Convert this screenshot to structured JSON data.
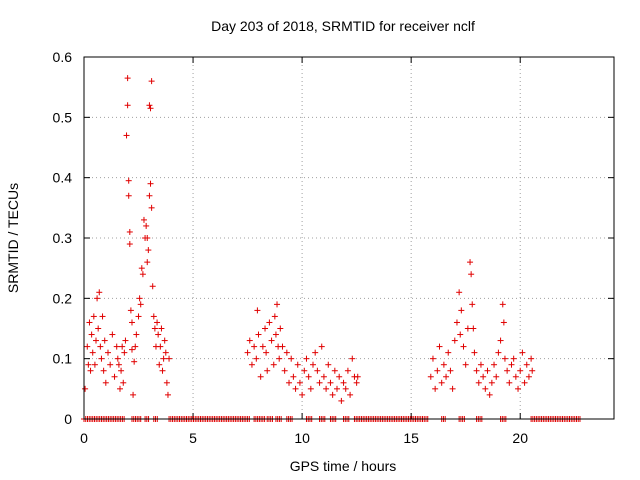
{
  "chart_data": {
    "type": "scatter",
    "title": "Day 203 of 2018, SRMTID for receiver nclf",
    "xlabel": "GPS time / hours",
    "ylabel": "SRMTID / TECUs",
    "xlim": [
      0,
      24.3
    ],
    "ylim": [
      0,
      0.6
    ],
    "xticks": [
      0,
      5,
      10,
      15,
      20
    ],
    "xtick_labels": [
      "0",
      "5",
      "10",
      "15",
      "20"
    ],
    "yticks": [
      0,
      0.1,
      0.2,
      0.3,
      0.4,
      0.5,
      0.6
    ],
    "ytick_labels": [
      "0",
      "0.1",
      "0.2",
      "0.3",
      "0.4",
      "0.5",
      "0.6"
    ],
    "grid": true,
    "marker": "+",
    "series": [
      {
        "name": "SRMTID",
        "color": "#e00000",
        "points": [
          [
            0.05,
            0.05
          ],
          [
            0.15,
            0.12
          ],
          [
            0.2,
            0.09
          ],
          [
            0.25,
            0.16
          ],
          [
            0.3,
            0.08
          ],
          [
            0.35,
            0.14
          ],
          [
            0.4,
            0.11
          ],
          [
            0.45,
            0.17
          ],
          [
            0.5,
            0.09
          ],
          [
            0.55,
            0.13
          ],
          [
            0.6,
            0.2
          ],
          [
            0.65,
            0.15
          ],
          [
            0.7,
            0.21
          ],
          [
            0.75,
            0.12
          ],
          [
            0.8,
            0.1
          ],
          [
            0.85,
            0.17
          ],
          [
            0.9,
            0.08
          ],
          [
            0.95,
            0.13
          ],
          [
            1.0,
            0.06
          ],
          [
            1.1,
            0.11
          ],
          [
            1.2,
            0.09
          ],
          [
            1.3,
            0.14
          ],
          [
            1.4,
            0.07
          ],
          [
            1.5,
            0.12
          ],
          [
            1.55,
            0.1
          ],
          [
            1.6,
            0.09
          ],
          [
            1.65,
            0.05
          ],
          [
            1.7,
            0.08
          ],
          [
            1.75,
            0.12
          ],
          [
            1.8,
            0.06
          ],
          [
            1.85,
            0.11
          ],
          [
            1.9,
            0.13
          ],
          [
            1.95,
            0.47
          ],
          [
            2.0,
            0.565
          ],
          [
            2.0,
            0.52
          ],
          [
            2.05,
            0.395
          ],
          [
            2.05,
            0.37
          ],
          [
            2.1,
            0.31
          ],
          [
            2.1,
            0.29
          ],
          [
            2.15,
            0.18
          ],
          [
            2.2,
            0.16
          ],
          [
            2.2,
            0.115
          ],
          [
            2.25,
            0.04
          ],
          [
            2.3,
            0.095
          ],
          [
            2.35,
            0.12
          ],
          [
            2.4,
            0.14
          ],
          [
            2.5,
            0.17
          ],
          [
            2.55,
            0.2
          ],
          [
            2.6,
            0.19
          ],
          [
            2.65,
            0.25
          ],
          [
            2.7,
            0.24
          ],
          [
            2.75,
            0.33
          ],
          [
            2.8,
            0.3
          ],
          [
            2.85,
            0.32
          ],
          [
            2.9,
            0.26
          ],
          [
            2.9,
            0.3
          ],
          [
            2.95,
            0.28
          ],
          [
            3.0,
            0.37
          ],
          [
            3.0,
            0.52
          ],
          [
            3.05,
            0.39
          ],
          [
            3.05,
            0.515
          ],
          [
            3.1,
            0.56
          ],
          [
            3.1,
            0.35
          ],
          [
            3.15,
            0.22
          ],
          [
            3.2,
            0.17
          ],
          [
            3.25,
            0.15
          ],
          [
            3.3,
            0.12
          ],
          [
            3.35,
            0.16
          ],
          [
            3.4,
            0.14
          ],
          [
            3.45,
            0.09
          ],
          [
            3.5,
            0.12
          ],
          [
            3.55,
            0.15
          ],
          [
            3.6,
            0.08
          ],
          [
            3.65,
            0.1
          ],
          [
            3.7,
            0.13
          ],
          [
            3.75,
            0.11
          ],
          [
            3.8,
            0.06
          ],
          [
            3.85,
            0.04
          ],
          [
            3.9,
            0.1
          ],
          [
            7.5,
            0.11
          ],
          [
            7.6,
            0.13
          ],
          [
            7.7,
            0.09
          ],
          [
            7.8,
            0.12
          ],
          [
            7.9,
            0.1
          ],
          [
            7.95,
            0.18
          ],
          [
            8.0,
            0.14
          ],
          [
            8.1,
            0.07
          ],
          [
            8.2,
            0.12
          ],
          [
            8.3,
            0.15
          ],
          [
            8.35,
            0.11
          ],
          [
            8.4,
            0.08
          ],
          [
            8.5,
            0.16
          ],
          [
            8.6,
            0.13
          ],
          [
            8.7,
            0.09
          ],
          [
            8.75,
            0.17
          ],
          [
            8.8,
            0.14
          ],
          [
            8.85,
            0.19
          ],
          [
            8.9,
            0.12
          ],
          [
            8.95,
            0.1
          ],
          [
            9.0,
            0.15
          ],
          [
            9.1,
            0.12
          ],
          [
            9.2,
            0.08
          ],
          [
            9.3,
            0.11
          ],
          [
            9.4,
            0.06
          ],
          [
            9.5,
            0.1
          ],
          [
            9.6,
            0.07
          ],
          [
            9.7,
            0.05
          ],
          [
            9.8,
            0.09
          ],
          [
            9.9,
            0.06
          ],
          [
            10.0,
            0.04
          ],
          [
            10.1,
            0.08
          ],
          [
            10.2,
            0.1
          ],
          [
            10.3,
            0.07
          ],
          [
            10.4,
            0.05
          ],
          [
            10.5,
            0.09
          ],
          [
            10.6,
            0.11
          ],
          [
            10.7,
            0.08
          ],
          [
            10.8,
            0.06
          ],
          [
            10.9,
            0.12
          ],
          [
            11.0,
            0.07
          ],
          [
            11.1,
            0.05
          ],
          [
            11.2,
            0.09
          ],
          [
            11.3,
            0.06
          ],
          [
            11.4,
            0.04
          ],
          [
            11.5,
            0.08
          ],
          [
            11.6,
            0.05
          ],
          [
            11.7,
            0.07
          ],
          [
            11.8,
            0.03
          ],
          [
            11.9,
            0.06
          ],
          [
            12.0,
            0.05
          ],
          [
            12.1,
            0.08
          ],
          [
            12.2,
            0.04
          ],
          [
            12.3,
            0.1
          ],
          [
            12.4,
            0.07
          ],
          [
            12.5,
            0.06
          ],
          [
            12.55,
            0.07
          ],
          [
            15.9,
            0.07
          ],
          [
            16.0,
            0.1
          ],
          [
            16.1,
            0.05
          ],
          [
            16.2,
            0.08
          ],
          [
            16.3,
            0.12
          ],
          [
            16.4,
            0.06
          ],
          [
            16.5,
            0.09
          ],
          [
            16.6,
            0.07
          ],
          [
            16.7,
            0.11
          ],
          [
            16.8,
            0.08
          ],
          [
            16.9,
            0.05
          ],
          [
            17.0,
            0.13
          ],
          [
            17.1,
            0.16
          ],
          [
            17.2,
            0.21
          ],
          [
            17.25,
            0.14
          ],
          [
            17.3,
            0.18
          ],
          [
            17.4,
            0.12
          ],
          [
            17.5,
            0.09
          ],
          [
            17.6,
            0.15
          ],
          [
            17.7,
            0.26
          ],
          [
            17.75,
            0.24
          ],
          [
            17.8,
            0.19
          ],
          [
            17.85,
            0.15
          ],
          [
            17.9,
            0.11
          ],
          [
            18.0,
            0.08
          ],
          [
            18.1,
            0.06
          ],
          [
            18.2,
            0.09
          ],
          [
            18.3,
            0.07
          ],
          [
            18.4,
            0.05
          ],
          [
            18.5,
            0.08
          ],
          [
            18.6,
            0.04
          ],
          [
            18.7,
            0.06
          ],
          [
            18.8,
            0.09
          ],
          [
            18.9,
            0.07
          ],
          [
            19.0,
            0.11
          ],
          [
            19.1,
            0.13
          ],
          [
            19.2,
            0.19
          ],
          [
            19.25,
            0.16
          ],
          [
            19.3,
            0.1
          ],
          [
            19.4,
            0.08
          ],
          [
            19.5,
            0.06
          ],
          [
            19.6,
            0.09
          ],
          [
            19.7,
            0.1
          ],
          [
            19.8,
            0.07
          ],
          [
            19.9,
            0.05
          ],
          [
            20.0,
            0.08
          ],
          [
            20.1,
            0.11
          ],
          [
            20.2,
            0.06
          ],
          [
            20.3,
            0.09
          ],
          [
            20.4,
            0.07
          ],
          [
            20.5,
            0.1
          ],
          [
            20.55,
            0.08
          ]
        ],
        "zero_ranges": [
          [
            0.0,
            1.9
          ],
          [
            2.2,
            2.6
          ],
          [
            2.8,
            3.0
          ],
          [
            3.2,
            3.4
          ],
          [
            3.9,
            7.6
          ],
          [
            7.8,
            8.3
          ],
          [
            8.4,
            8.7
          ],
          [
            8.8,
            9.1
          ],
          [
            9.3,
            9.6
          ],
          [
            10.2,
            10.5
          ],
          [
            10.8,
            11.1
          ],
          [
            11.3,
            11.6
          ],
          [
            11.9,
            12.2
          ],
          [
            12.4,
            15.8
          ],
          [
            16.4,
            16.6
          ],
          [
            17.2,
            17.5
          ],
          [
            18.0,
            18.3
          ],
          [
            19.1,
            19.4
          ],
          [
            20.5,
            22.8
          ]
        ]
      }
    ]
  }
}
